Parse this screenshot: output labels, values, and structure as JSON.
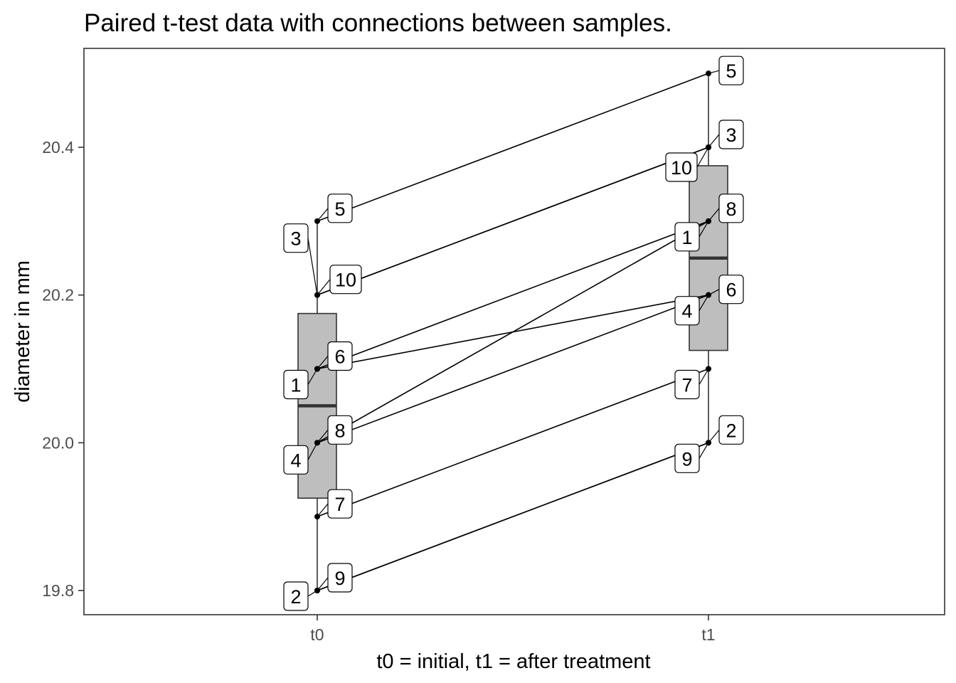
{
  "chart_data": {
    "type": "boxplot",
    "title": "Paired t-test data with connections between samples.",
    "xlabel": "t0 = initial, t1 = after treatment",
    "ylabel": "diameter in mm",
    "categories": [
      "t0",
      "t1"
    ],
    "ylim": [
      19.75,
      20.54
    ],
    "yticks": [
      19.8,
      20.0,
      20.2,
      20.4
    ],
    "grid": false,
    "box_color": "#bebebe",
    "median_color": "#333333",
    "boxes": [
      {
        "category": "t0",
        "q1": 19.925,
        "median": 20.05,
        "q3": 20.175,
        "whisker_low": 19.8,
        "whisker_high": 20.3
      },
      {
        "category": "t1",
        "q1": 20.125,
        "median": 20.25,
        "q3": 20.375,
        "whisker_low": 20.0,
        "whisker_high": 20.5
      }
    ],
    "pairs": [
      {
        "id": "1",
        "t0": 20.1,
        "t1": 20.3
      },
      {
        "id": "2",
        "t0": 19.8,
        "t1": 20.0
      },
      {
        "id": "3",
        "t0": 20.2,
        "t1": 20.4
      },
      {
        "id": "4",
        "t0": 20.0,
        "t1": 20.2
      },
      {
        "id": "5",
        "t0": 20.3,
        "t1": 20.5
      },
      {
        "id": "6",
        "t0": 20.1,
        "t1": 20.2
      },
      {
        "id": "7",
        "t0": 19.9,
        "t1": 20.1
      },
      {
        "id": "8",
        "t0": 20.0,
        "t1": 20.3
      },
      {
        "id": "9",
        "t0": 19.8,
        "t1": 20.0
      },
      {
        "id": "10",
        "t0": 20.2,
        "t1": 20.4
      }
    ]
  }
}
